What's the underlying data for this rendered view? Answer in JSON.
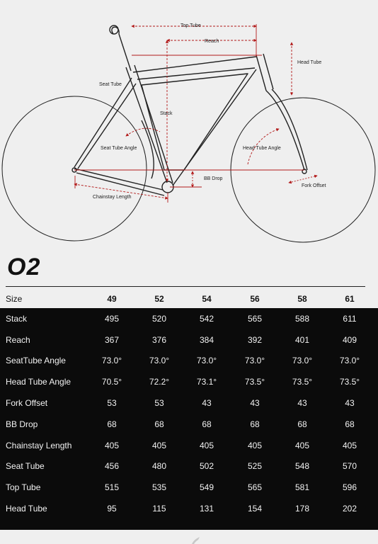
{
  "diagram": {
    "labels": {
      "top_tube": "Top Tube",
      "reach": "Reach",
      "head_tube": "Head Tube",
      "seat_tube": "Seat Tube",
      "stack": "Stack",
      "seat_tube_angle": "Seat Tube Angle",
      "head_tube_angle": "Head Tube Angle",
      "bb_drop": "BB Drop",
      "fork_offset": "Fork Offset",
      "chainstay_length": "Chainstay Length"
    },
    "colors": {
      "frame": "#222222",
      "dimension": "#b21a1a"
    }
  },
  "model": {
    "name": "O2"
  },
  "table": {
    "size_label": "Size",
    "sizes": [
      "49",
      "52",
      "54",
      "56",
      "58",
      "61"
    ],
    "rows": [
      {
        "label": "Stack",
        "values": [
          "495",
          "520",
          "542",
          "565",
          "588",
          "611"
        ]
      },
      {
        "label": "Reach",
        "values": [
          "367",
          "376",
          "384",
          "392",
          "401",
          "409"
        ]
      },
      {
        "label": "SeatTube Angle",
        "values": [
          "73.0°",
          "73.0°",
          "73.0°",
          "73.0°",
          "73.0°",
          "73.0°"
        ]
      },
      {
        "label": "Head Tube Angle",
        "values": [
          "70.5°",
          "72.2°",
          "73.1°",
          "73.5°",
          "73.5°",
          "73.5°"
        ]
      },
      {
        "label": "Fork Offset",
        "values": [
          "53",
          "53",
          "43",
          "43",
          "43",
          "43"
        ]
      },
      {
        "label": "BB Drop",
        "values": [
          "68",
          "68",
          "68",
          "68",
          "68",
          "68"
        ]
      },
      {
        "label": "Chainstay Length",
        "values": [
          "405",
          "405",
          "405",
          "405",
          "405",
          "405"
        ]
      },
      {
        "label": "Seat Tube",
        "values": [
          "456",
          "480",
          "502",
          "525",
          "548",
          "570"
        ]
      },
      {
        "label": "Top Tube",
        "values": [
          "515",
          "535",
          "549",
          "565",
          "581",
          "596"
        ]
      },
      {
        "label": "Head Tube",
        "values": [
          "95",
          "115",
          "131",
          "154",
          "178",
          "202"
        ]
      }
    ]
  }
}
